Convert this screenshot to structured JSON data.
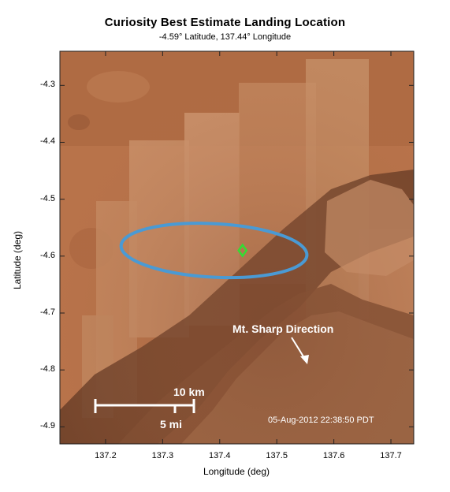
{
  "title": "Curiosity Best Estimate Landing Location",
  "subtitle": "-4.59° Latitude, 137.44° Longitude",
  "chart_data": {
    "type": "scatter",
    "title": "Curiosity Best Estimate Landing Location",
    "subtitle": "-4.59° Latitude, 137.44° Longitude",
    "xlabel": "Longitude (deg)",
    "ylabel": "Latitude (deg)",
    "xlim": [
      137.12,
      137.74
    ],
    "ylim": [
      -4.93,
      -4.24
    ],
    "xticks": [
      137.2,
      137.3,
      137.4,
      137.5,
      137.6,
      137.7
    ],
    "yticks": [
      -4.3,
      -4.4,
      -4.5,
      -4.6,
      -4.7,
      -4.8,
      -4.9
    ],
    "grid": false,
    "landing_point": {
      "lon": 137.44,
      "lat": -4.59,
      "color": "#33dd33",
      "marker": "diamond"
    },
    "landing_ellipse": {
      "center_lon": 137.39,
      "center_lat": -4.59,
      "semi_axis_lon": 0.163,
      "semi_axis_lat": 0.047,
      "color": "#4a9ad4"
    },
    "background": "Mars orbital imagery (Gale Crater)"
  },
  "annotations": {
    "scale_big": "10 km",
    "scale_small": "5 mi",
    "direction_label": "Mt. Sharp Direction",
    "timestamp": "05-Aug-2012 22:38:50 PDT"
  },
  "colors": {
    "terrain_base": "#b8734a",
    "terrain_dark": "#4a2c1e",
    "ellipse": "#4a9ad4",
    "marker": "#33dd33",
    "annotation": "#ffffff"
  }
}
